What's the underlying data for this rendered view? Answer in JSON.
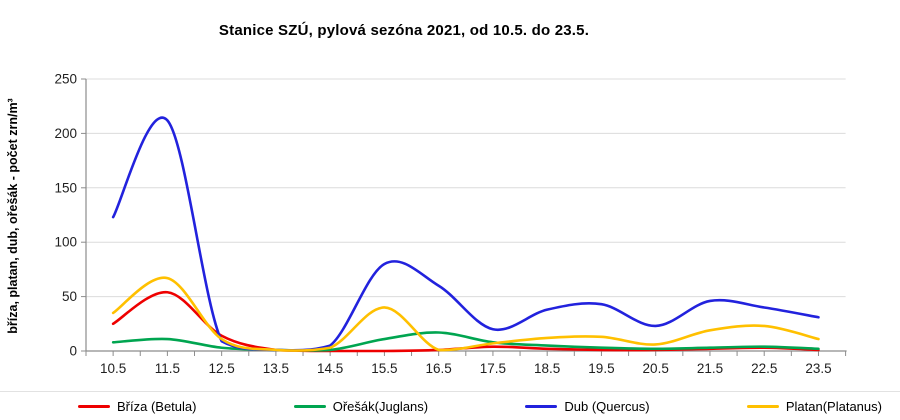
{
  "title": "Stanice SZÚ, pylová sezóna 2021, od 10.5. do 23.5.",
  "y_axis_label": "bříza, platan, dub, ořešák -  počet zrn/m³",
  "chart_data": {
    "type": "line",
    "smooth": true,
    "title": "Stanice SZÚ, pylová sezóna 2021, od 10.5. do 23.5.",
    "xlabel": "",
    "ylabel": "bříza, platan, dub, ořešák -  počet zrn/m³",
    "categories": [
      "10.5",
      "11.5",
      "12.5",
      "13.5",
      "14.5",
      "15.5",
      "16.5",
      "17.5",
      "18.5",
      "19.5",
      "20.5",
      "21.5",
      "22.5",
      "23.5"
    ],
    "series": [
      {
        "key": "briza",
        "name": "Bříza (Betula)",
        "color": "#ee0000",
        "values": [
          25,
          54,
          14,
          1,
          0,
          0,
          1,
          4,
          2,
          1,
          1,
          2,
          3,
          1
        ]
      },
      {
        "key": "oresak",
        "name": "Ořešák(Juglans)",
        "color": "#00a550",
        "values": [
          8,
          11,
          3,
          1,
          1,
          11,
          17,
          8,
          5,
          3,
          2,
          3,
          4,
          2
        ]
      },
      {
        "key": "dub",
        "name": "Dub (Quercus)",
        "color": "#2222dd",
        "values": [
          123,
          212,
          9,
          1,
          5,
          80,
          60,
          20,
          38,
          43,
          23,
          46,
          40,
          31
        ]
      },
      {
        "key": "platan",
        "name": "Platan(Platanus)",
        "color": "#ffc000",
        "values": [
          35,
          67,
          11,
          1,
          3,
          40,
          1,
          7,
          12,
          13,
          6,
          19,
          23,
          11
        ]
      }
    ],
    "ylim": [
      0,
      250
    ],
    "y_ticks": [
      0,
      50,
      100,
      150,
      200,
      250
    ],
    "grid": true,
    "legend_position": "bottom",
    "colors": {
      "grid": "#dcdcdc",
      "axis": "#8c8c8c",
      "tick_label": "#1f1f1f"
    }
  }
}
